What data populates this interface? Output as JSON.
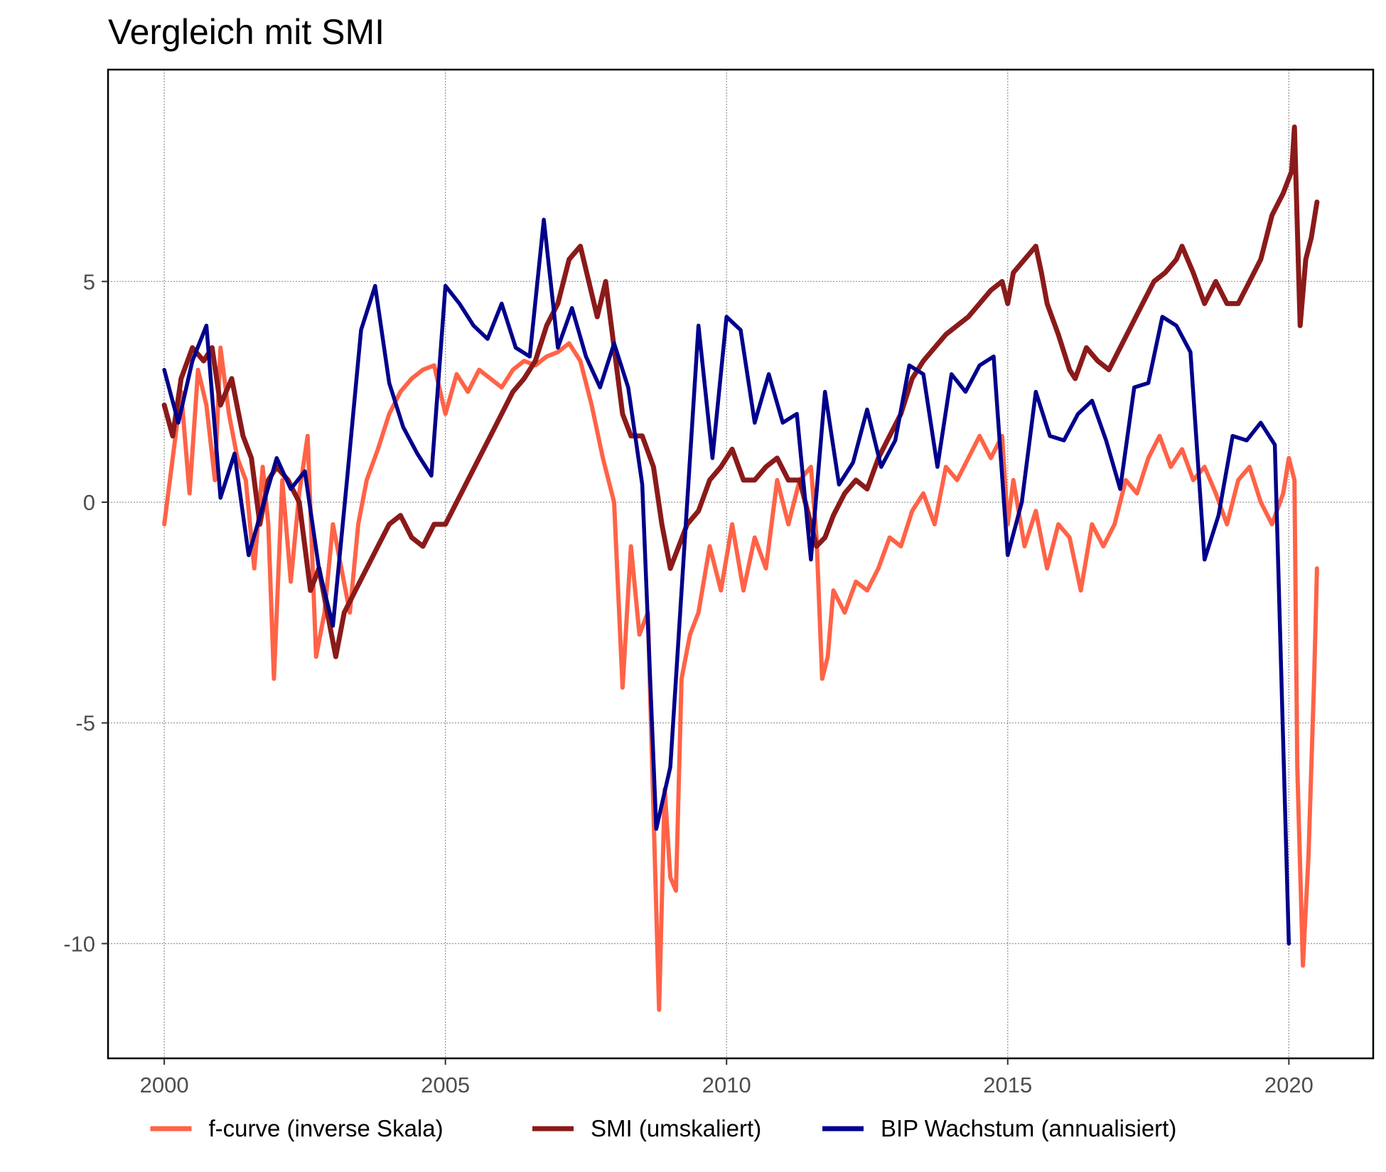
{
  "chart_data": {
    "type": "line",
    "title": "Vergleich mit SMI",
    "xlabel": "",
    "ylabel": "",
    "xlim": [
      1999.0,
      2021.5
    ],
    "ylim": [
      -12.6,
      9.8
    ],
    "x_ticks": [
      2000,
      2005,
      2010,
      2015,
      2020
    ],
    "x_tick_labels": [
      "2000",
      "2005",
      "2010",
      "2015",
      "2020"
    ],
    "y_ticks": [
      -10,
      -5,
      0,
      5
    ],
    "y_tick_labels": [
      "-10",
      "-5",
      "0",
      "5"
    ],
    "grid": true,
    "legend_position": "bottom",
    "series": [
      {
        "name": "f-curve (inverse Skala)",
        "color": "#FF6347",
        "x": [
          2000.0,
          2000.15,
          2000.3,
          2000.45,
          2000.6,
          2000.75,
          2000.9,
          2001.0,
          2001.15,
          2001.3,
          2001.45,
          2001.6,
          2001.75,
          2001.85,
          2001.95,
          2002.1,
          2002.25,
          2002.4,
          2002.55,
          2002.7,
          2002.85,
          2003.0,
          2003.15,
          2003.3,
          2003.45,
          2003.6,
          2003.8,
          2004.0,
          2004.2,
          2004.4,
          2004.6,
          2004.8,
          2005.0,
          2005.2,
          2005.4,
          2005.6,
          2005.8,
          2006.0,
          2006.2,
          2006.4,
          2006.6,
          2006.8,
          2007.0,
          2007.2,
          2007.4,
          2007.6,
          2007.8,
          2008.0,
          2008.15,
          2008.3,
          2008.45,
          2008.6,
          2008.7,
          2008.8,
          2008.9,
          2009.0,
          2009.1,
          2009.2,
          2009.35,
          2009.5,
          2009.7,
          2009.9,
          2010.1,
          2010.3,
          2010.5,
          2010.7,
          2010.9,
          2011.1,
          2011.3,
          2011.5,
          2011.6,
          2011.7,
          2011.8,
          2011.9,
          2012.1,
          2012.3,
          2012.5,
          2012.7,
          2012.9,
          2013.1,
          2013.3,
          2013.5,
          2013.7,
          2013.9,
          2014.1,
          2014.3,
          2014.5,
          2014.7,
          2014.9,
          2015.0,
          2015.1,
          2015.3,
          2015.5,
          2015.7,
          2015.9,
          2016.1,
          2016.3,
          2016.5,
          2016.7,
          2016.9,
          2017.1,
          2017.3,
          2017.5,
          2017.7,
          2017.9,
          2018.1,
          2018.3,
          2018.5,
          2018.7,
          2018.9,
          2019.1,
          2019.3,
          2019.5,
          2019.7,
          2019.9,
          2020.0,
          2020.1,
          2020.15,
          2020.25,
          2020.35,
          2020.45,
          2020.5
        ],
        "y": [
          -0.5,
          1.0,
          2.5,
          0.2,
          3.0,
          2.2,
          0.5,
          3.5,
          2.0,
          1.0,
          0.5,
          -1.5,
          0.8,
          -0.5,
          -4.0,
          0.5,
          -1.8,
          0.2,
          1.5,
          -3.5,
          -2.5,
          -0.5,
          -1.5,
          -2.5,
          -0.5,
          0.5,
          1.2,
          2.0,
          2.5,
          2.8,
          3.0,
          3.1,
          2.0,
          2.9,
          2.5,
          3.0,
          2.8,
          2.6,
          3.0,
          3.2,
          3.1,
          3.3,
          3.4,
          3.6,
          3.2,
          2.2,
          1.0,
          0.0,
          -4.2,
          -1.0,
          -3.0,
          -2.5,
          -7.0,
          -11.5,
          -6.5,
          -8.5,
          -8.8,
          -4.0,
          -3.0,
          -2.5,
          -1.0,
          -2.0,
          -0.5,
          -2.0,
          -0.8,
          -1.5,
          0.5,
          -0.5,
          0.5,
          0.8,
          -0.8,
          -4.0,
          -3.5,
          -2.0,
          -2.5,
          -1.8,
          -2.0,
          -1.5,
          -0.8,
          -1.0,
          -0.2,
          0.2,
          -0.5,
          0.8,
          0.5,
          1.0,
          1.5,
          1.0,
          1.5,
          -0.5,
          0.5,
          -1.0,
          -0.2,
          -1.5,
          -0.5,
          -0.8,
          -2.0,
          -0.5,
          -1.0,
          -0.5,
          0.5,
          0.2,
          1.0,
          1.5,
          0.8,
          1.2,
          0.5,
          0.8,
          0.2,
          -0.5,
          0.5,
          0.8,
          0.0,
          -0.5,
          0.2,
          1.0,
          0.5,
          -6.0,
          -10.5,
          -8.0,
          -4.0,
          -1.5
        ]
      },
      {
        "name": "SMI (umskaliert)",
        "color": "#8B1A1A",
        "x": [
          2000.0,
          2000.15,
          2000.3,
          2000.5,
          2000.7,
          2000.85,
          2001.0,
          2001.2,
          2001.4,
          2001.55,
          2001.7,
          2001.85,
          2002.0,
          2002.2,
          2002.4,
          2002.6,
          2002.75,
          2002.9,
          2003.05,
          2003.2,
          2003.4,
          2003.6,
          2003.8,
          2004.0,
          2004.2,
          2004.4,
          2004.6,
          2004.8,
          2005.0,
          2005.2,
          2005.4,
          2005.6,
          2005.8,
          2006.0,
          2006.2,
          2006.4,
          2006.6,
          2006.8,
          2007.0,
          2007.2,
          2007.4,
          2007.55,
          2007.7,
          2007.85,
          2008.0,
          2008.15,
          2008.3,
          2008.5,
          2008.7,
          2008.85,
          2009.0,
          2009.15,
          2009.3,
          2009.5,
          2009.7,
          2009.9,
          2010.1,
          2010.3,
          2010.5,
          2010.7,
          2010.9,
          2011.1,
          2011.3,
          2011.5,
          2011.6,
          2011.75,
          2011.9,
          2012.1,
          2012.3,
          2012.5,
          2012.7,
          2012.9,
          2013.1,
          2013.3,
          2013.5,
          2013.7,
          2013.9,
          2014.1,
          2014.3,
          2014.5,
          2014.7,
          2014.9,
          2015.0,
          2015.1,
          2015.3,
          2015.5,
          2015.6,
          2015.7,
          2015.9,
          2016.1,
          2016.2,
          2016.4,
          2016.6,
          2016.8,
          2017.0,
          2017.2,
          2017.4,
          2017.6,
          2017.8,
          2018.0,
          2018.1,
          2018.3,
          2018.5,
          2018.7,
          2018.9,
          2019.1,
          2019.3,
          2019.5,
          2019.7,
          2019.9,
          2020.05,
          2020.1,
          2020.2,
          2020.3,
          2020.4,
          2020.5
        ],
        "y": [
          2.2,
          1.5,
          2.8,
          3.5,
          3.2,
          3.5,
          2.2,
          2.8,
          1.5,
          1.0,
          -0.5,
          0.5,
          0.8,
          0.5,
          0.0,
          -2.0,
          -1.5,
          -2.5,
          -3.5,
          -2.5,
          -2.0,
          -1.5,
          -1.0,
          -0.5,
          -0.3,
          -0.8,
          -1.0,
          -0.5,
          -0.5,
          0.0,
          0.5,
          1.0,
          1.5,
          2.0,
          2.5,
          2.8,
          3.2,
          4.0,
          4.5,
          5.5,
          5.8,
          5.0,
          4.2,
          5.0,
          3.5,
          2.0,
          1.5,
          1.5,
          0.8,
          -0.5,
          -1.5,
          -1.0,
          -0.5,
          -0.2,
          0.5,
          0.8,
          1.2,
          0.5,
          0.5,
          0.8,
          1.0,
          0.5,
          0.5,
          -0.5,
          -1.0,
          -0.8,
          -0.3,
          0.2,
          0.5,
          0.3,
          1.0,
          1.5,
          2.0,
          2.8,
          3.2,
          3.5,
          3.8,
          4.0,
          4.2,
          4.5,
          4.8,
          5.0,
          4.5,
          5.2,
          5.5,
          5.8,
          5.2,
          4.5,
          3.8,
          3.0,
          2.8,
          3.5,
          3.2,
          3.0,
          3.5,
          4.0,
          4.5,
          5.0,
          5.2,
          5.5,
          5.8,
          5.2,
          4.5,
          5.0,
          4.5,
          4.5,
          5.0,
          5.5,
          6.5,
          7.0,
          7.5,
          8.5,
          4.0,
          5.5,
          6.0,
          6.8
        ]
      },
      {
        "name": "BIP Wachstum (annualisiert)",
        "color": "#00008B",
        "x": [
          2000.0,
          2000.25,
          2000.5,
          2000.75,
          2001.0,
          2001.25,
          2001.5,
          2001.75,
          2002.0,
          2002.25,
          2002.5,
          2002.75,
          2003.0,
          2003.25,
          2003.5,
          2003.75,
          2004.0,
          2004.25,
          2004.5,
          2004.75,
          2005.0,
          2005.25,
          2005.5,
          2005.75,
          2006.0,
          2006.25,
          2006.5,
          2006.75,
          2007.0,
          2007.25,
          2007.5,
          2007.75,
          2008.0,
          2008.25,
          2008.5,
          2008.75,
          2009.0,
          2009.25,
          2009.5,
          2009.75,
          2010.0,
          2010.25,
          2010.5,
          2010.75,
          2011.0,
          2011.25,
          2011.5,
          2011.75,
          2012.0,
          2012.25,
          2012.5,
          2012.75,
          2013.0,
          2013.25,
          2013.5,
          2013.75,
          2014.0,
          2014.25,
          2014.5,
          2014.75,
          2015.0,
          2015.25,
          2015.5,
          2015.75,
          2016.0,
          2016.25,
          2016.5,
          2016.75,
          2017.0,
          2017.25,
          2017.5,
          2017.75,
          2018.0,
          2018.25,
          2018.5,
          2018.75,
          2019.0,
          2019.25,
          2019.5,
          2019.75,
          2020.0
        ],
        "y": [
          3.0,
          1.8,
          3.2,
          4.0,
          0.1,
          1.1,
          -1.2,
          -0.1,
          1.0,
          0.3,
          0.7,
          -1.5,
          -2.8,
          0.5,
          3.9,
          4.9,
          2.7,
          1.7,
          1.1,
          0.6,
          4.9,
          4.5,
          4.0,
          3.7,
          4.5,
          3.5,
          3.3,
          6.4,
          3.5,
          4.4,
          3.3,
          2.6,
          3.6,
          2.6,
          0.4,
          -7.4,
          -6.0,
          -1.0,
          4.0,
          1.0,
          4.2,
          3.9,
          1.8,
          2.9,
          1.8,
          2.0,
          -1.3,
          2.5,
          0.4,
          0.9,
          2.1,
          0.8,
          1.4,
          3.1,
          2.9,
          0.8,
          2.9,
          2.5,
          3.1,
          3.3,
          -1.2,
          0.0,
          2.5,
          1.5,
          1.4,
          2.0,
          2.3,
          1.4,
          0.3,
          2.6,
          2.7,
          4.2,
          4.0,
          3.4,
          -1.3,
          -0.3,
          1.5,
          1.4,
          1.8,
          1.3,
          -10.0
        ]
      }
    ]
  }
}
